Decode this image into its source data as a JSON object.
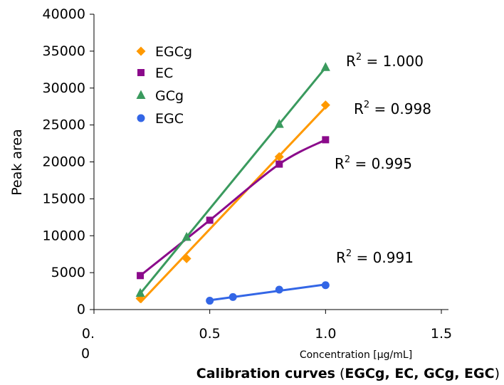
{
  "chart_data": {
    "type": "scatter",
    "title": "",
    "xlabel": "Concentration [μg/mL]",
    "ylabel": "Peak area",
    "xlim": [
      0,
      1.5
    ],
    "ylim": [
      0,
      40000
    ],
    "x_ticks": [
      "0.0",
      "0.5",
      "1.0",
      "1.5"
    ],
    "x_tick_values": [
      0,
      0.5,
      1.0,
      1.5
    ],
    "y_ticks": [
      "0",
      "5000",
      "10000",
      "15000",
      "20000",
      "25000",
      "30000",
      "35000",
      "40000"
    ],
    "y_tick_values": [
      0,
      5000,
      10000,
      15000,
      20000,
      25000,
      30000,
      35000,
      40000
    ],
    "grid": false,
    "legend_position": "top-left",
    "series": [
      {
        "name": "EGCg",
        "marker": "diamond",
        "color": "#FF9900",
        "x": [
          0.2,
          0.4,
          0.8,
          1.0
        ],
        "y": [
          1500,
          6900,
          20700,
          27700
        ],
        "fit": "linear",
        "r2_label": "= 0.998"
      },
      {
        "name": "EC",
        "marker": "square",
        "color": "#8B0A8B",
        "x": [
          0.2,
          0.5,
          0.8,
          1.0
        ],
        "y": [
          4600,
          12100,
          19700,
          23000
        ],
        "fit": "curve",
        "r2_label": "= 0.995"
      },
      {
        "name": "GCg",
        "marker": "triangle",
        "color": "#3A9A5E",
        "x": [
          0.2,
          0.4,
          0.8,
          1.0
        ],
        "y": [
          2200,
          9800,
          25100,
          32800
        ],
        "fit": "linear",
        "r2_label": "= 1.000"
      },
      {
        "name": "EGC",
        "marker": "circle",
        "color": "#3366E6",
        "x": [
          0.5,
          0.6,
          0.8,
          1.0
        ],
        "y": [
          1200,
          1700,
          2700,
          3300
        ],
        "fit": "linear",
        "r2_label": "= 0.991"
      }
    ],
    "r2_prefix": "R",
    "r2_superscript": "2",
    "caption_bold": "Calibration curves",
    "caption_paren_open": " (",
    "caption_series_bold": "EGCg, EC, GCg, EGC",
    "caption_paren_close": ")"
  }
}
